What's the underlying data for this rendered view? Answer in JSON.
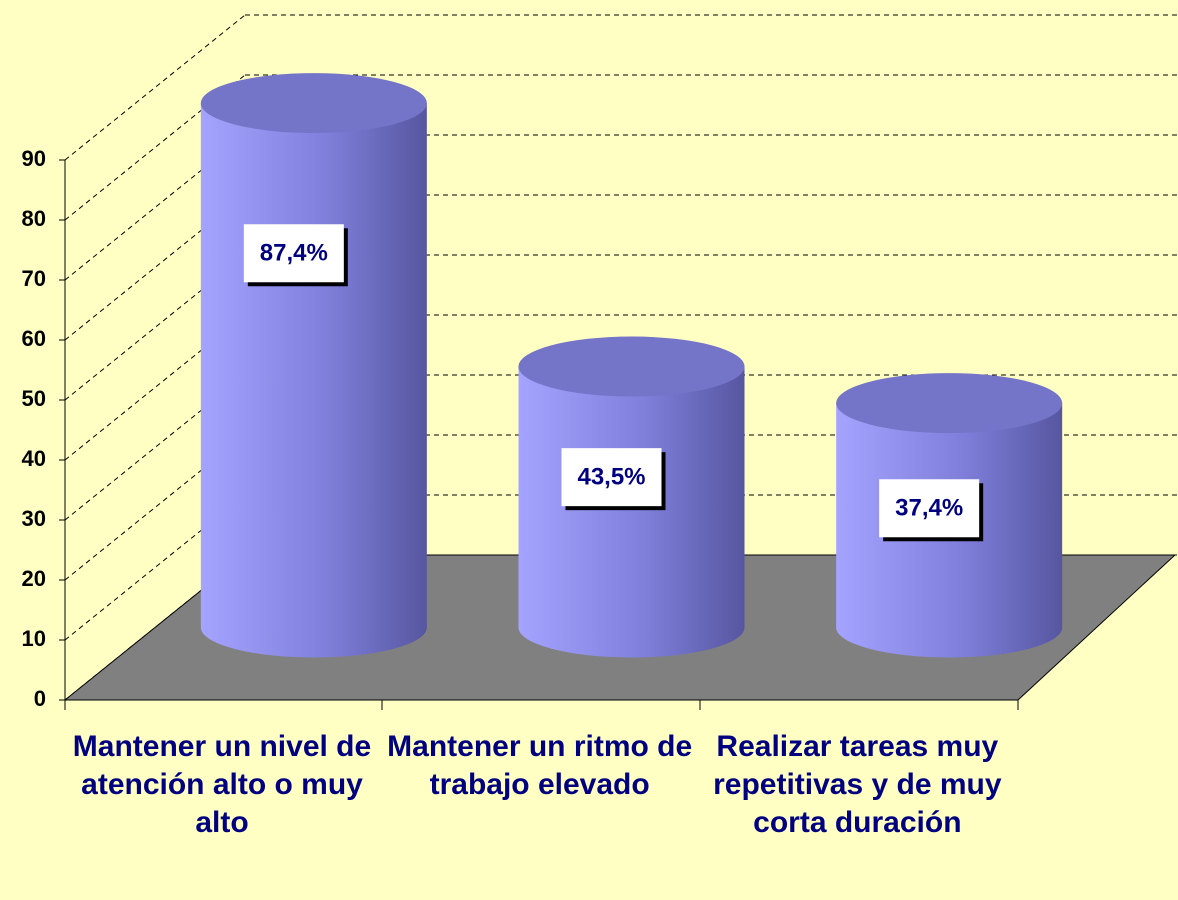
{
  "chart_data": {
    "type": "cylinder",
    "categories": [
      "Mantener un nivel de atención alto o muy alto",
      "Mantener un ritmo de trabajo elevado",
      "Realizar tareas muy repetitivas y de muy corta duración"
    ],
    "values": [
      87.4,
      43.5,
      37.4
    ],
    "value_labels": [
      "87,4%",
      "43,5%",
      "37,4%"
    ],
    "color": "#8c8cf0",
    "ylim": [
      0,
      90
    ],
    "yticks": [
      0,
      10,
      20,
      30,
      40,
      50,
      60,
      70,
      80,
      90
    ],
    "grid": true
  }
}
